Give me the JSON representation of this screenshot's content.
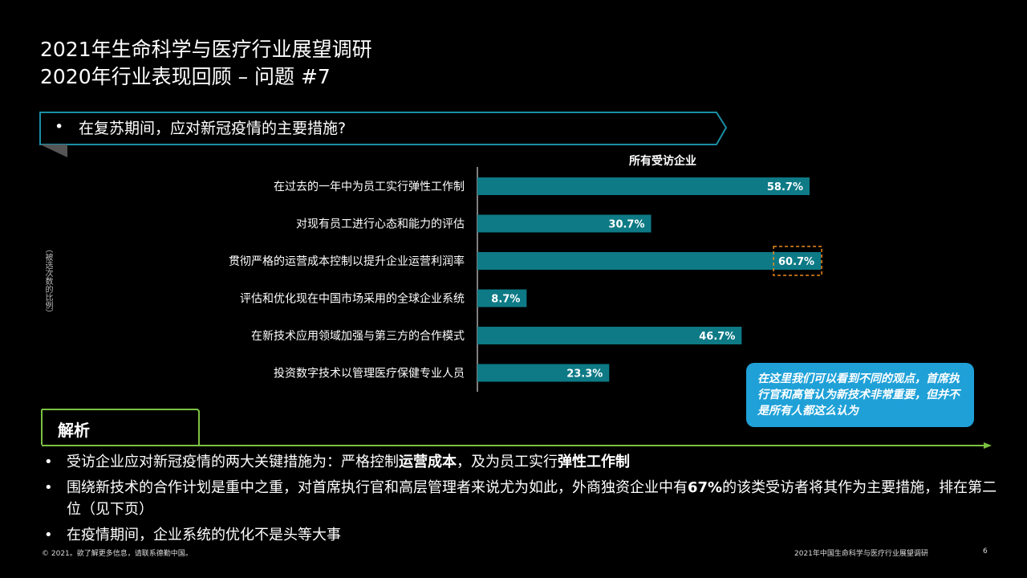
{
  "header": {
    "title_line1": "2021年生命科学与医疗行业展望调研",
    "title_line2": "2020年行业表现回顾 – 问题 #7"
  },
  "question": {
    "bullet": "•",
    "text": "在复苏期间，应对新冠疫情的主要措施?"
  },
  "chart_data": {
    "type": "bar",
    "orientation": "horizontal",
    "series_label": "所有受访企业",
    "ylabel": "（被选次数的比例）",
    "categories": [
      "在过去的一年中为员工实行弹性工作制",
      "对现有员工进行心态和能力的评估",
      "贯彻严格的运营成本控制以提升企业运营利润率",
      "评估和优化现在中国市场采用的全球企业系统",
      "在新技术应用领域加强与第三方的合作模式",
      "投资数字技术以管理医疗保健专业人员"
    ],
    "values": [
      58.7,
      30.7,
      60.7,
      8.7,
      46.7,
      23.3
    ],
    "value_labels": [
      "58.7%",
      "30.7%",
      "60.7%",
      "8.7%",
      "46.7%",
      "23.3%"
    ],
    "highlighted_index": 2,
    "bar_color": "#0d7a86",
    "highlight_color": "#ee8a1c"
  },
  "callout": {
    "text": "在这里我们可以看到不同的观点，首席执行官和高管认为新技术非常重要，但并不是所有人都这么认为",
    "color": "#1fa1d8"
  },
  "analysis": {
    "heading": "解析",
    "accent_color": "#7cc242",
    "items": [
      {
        "bullet": "•",
        "parts": [
          {
            "text": "受访企业应对新冠疫情的两大关键措施为：严格控制",
            "bold": false
          },
          {
            "text": "运营成本",
            "bold": true
          },
          {
            "text": "，及为员工实行",
            "bold": false
          },
          {
            "text": "弹性工作制",
            "bold": true
          }
        ]
      },
      {
        "bullet": "•",
        "parts": [
          {
            "text": "围绕新技术的合作计划是重中之重，对首席执行官和高层管理者来说尤为如此，外商独资企业中有",
            "bold": false
          },
          {
            "text": "67%",
            "bold": true
          },
          {
            "text": "的该类受访者将其作为主要措施，排在第二位（见下页）",
            "bold": false
          }
        ]
      },
      {
        "bullet": "•",
        "parts": [
          {
            "text": "在疫情期间，企业系统的优化不是头等大事",
            "bold": false
          }
        ]
      }
    ]
  },
  "footer": {
    "left": "© 2021。欲了解更多信息，请联系德勤中国。",
    "right": "2021年中国生命科学与医疗行业展望调研",
    "page": "6"
  }
}
